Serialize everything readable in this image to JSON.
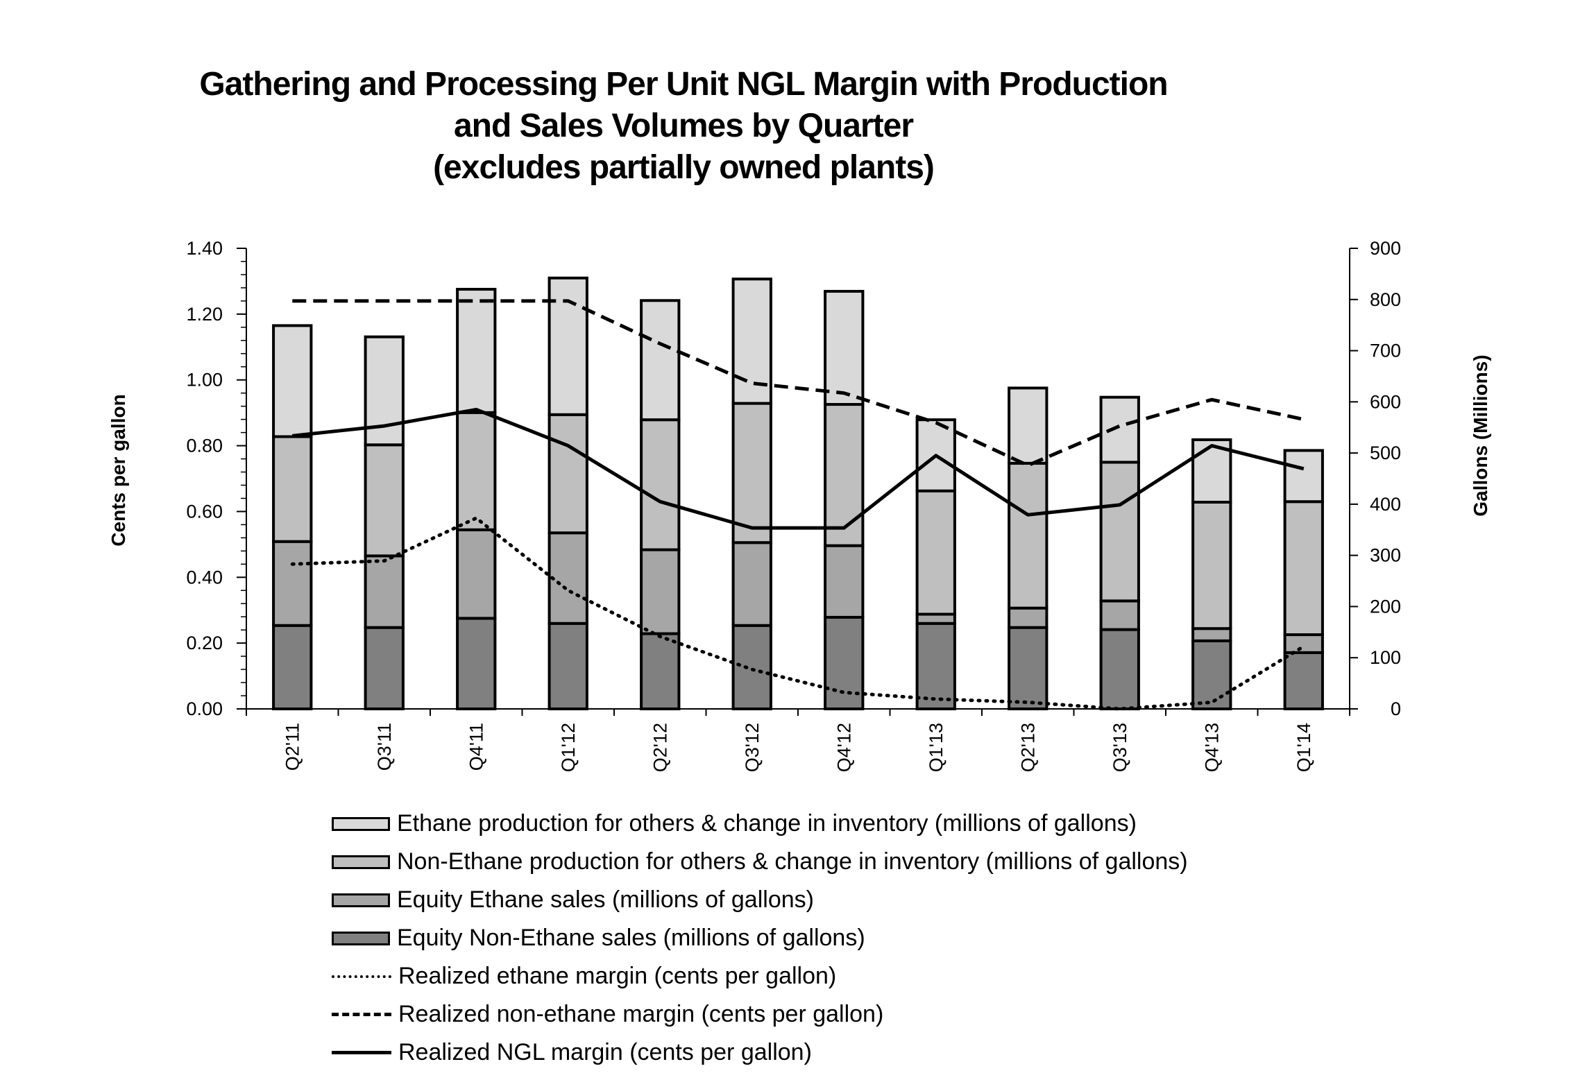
{
  "title_lines": [
    "Gathering and Processing Per Unit NGL Margin with Production",
    "and Sales Volumes by Quarter",
    "(excludes partially owned plants)"
  ],
  "colors": {
    "ethane_production": "#d9d9d9",
    "non_ethane_production": "#bfbfbf",
    "equity_ethane": "#a6a6a6",
    "equity_non_ethane": "#808080",
    "lines": "#000000"
  },
  "chart_data": {
    "type": "bar",
    "title": "Gathering and Processing Per Unit NGL Margin with Production and Sales Volumes by Quarter (excludes partially owned plants)",
    "categories": [
      "Q2'11",
      "Q3'11",
      "Q4'11",
      "Q1'12",
      "Q2'12",
      "Q3'12",
      "Q4'12",
      "Q1'13",
      "Q2'13",
      "Q3'13",
      "Q4'13",
      "Q1'14"
    ],
    "ylabel": "Cents per gallon",
    "ylim": [
      0,
      1.4
    ],
    "yticks": [
      "0.00",
      "0.20",
      "0.40",
      "0.60",
      "0.80",
      "1.00",
      "1.20",
      "1.40"
    ],
    "y2label": "Gallons (Millions)",
    "y2lim": [
      0,
      900
    ],
    "y2ticks": [
      "0",
      "100",
      "200",
      "300",
      "400",
      "500",
      "600",
      "700",
      "800",
      "900"
    ],
    "stacked_series_axis": "right",
    "series": [
      {
        "name": "Equity Non-Ethane sales (millions of gallons)",
        "kind": "bar",
        "axis": "right",
        "color": "#808080",
        "values": [
          163,
          159,
          177,
          167,
          147,
          163,
          179,
          167,
          159,
          155,
          133,
          110
        ]
      },
      {
        "name": "Equity Ethane sales (millions of gallons)",
        "kind": "bar",
        "axis": "right",
        "color": "#a6a6a6",
        "values": [
          164,
          140,
          173,
          177,
          164,
          162,
          140,
          18,
          38,
          56,
          24,
          35
        ]
      },
      {
        "name": "Non-Ethane production for others & change in inventory (millions of gallons)",
        "kind": "bar",
        "axis": "right",
        "color": "#bfbfbf",
        "values": [
          205,
          217,
          229,
          231,
          254,
          272,
          276,
          241,
          283,
          271,
          247,
          260
        ]
      },
      {
        "name": "Ethane production for others & change in inventory (millions of gallons)",
        "kind": "bar",
        "axis": "right",
        "color": "#d9d9d9",
        "values": [
          217,
          211,
          241,
          267,
          233,
          243,
          221,
          139,
          147,
          127,
          122,
          100
        ]
      },
      {
        "name": "Realized ethane margin (cents per gallon)",
        "kind": "line",
        "style": "dotted",
        "axis": "left",
        "values": [
          0.44,
          0.45,
          0.58,
          0.36,
          0.22,
          0.12,
          0.05,
          0.03,
          0.02,
          0.0,
          0.02,
          0.19
        ]
      },
      {
        "name": "Realized non-ethane margin (cents per gallon)",
        "kind": "line",
        "style": "dashed",
        "axis": "left",
        "values": [
          1.24,
          1.24,
          1.24,
          1.24,
          1.11,
          0.99,
          0.96,
          0.87,
          0.74,
          0.86,
          0.94,
          0.88
        ]
      },
      {
        "name": "Realized NGL margin (cents per gallon)",
        "kind": "line",
        "style": "solid",
        "axis": "left",
        "values": [
          0.83,
          0.86,
          0.91,
          0.8,
          0.63,
          0.55,
          0.55,
          0.77,
          0.59,
          0.62,
          0.8,
          0.73
        ]
      }
    ],
    "legend": {
      "position": "bottom",
      "entries": [
        "Ethane production for others & change in inventory (millions of gallons)",
        "Non-Ethane production for others & change in inventory (millions of gallons)",
        "Equity Ethane sales (millions of gallons)",
        "Equity Non-Ethane sales (millions of gallons)",
        "Realized ethane margin (cents per gallon)",
        "Realized non-ethane margin (cents per gallon)",
        "Realized NGL margin (cents per gallon)"
      ]
    },
    "grid": false
  }
}
